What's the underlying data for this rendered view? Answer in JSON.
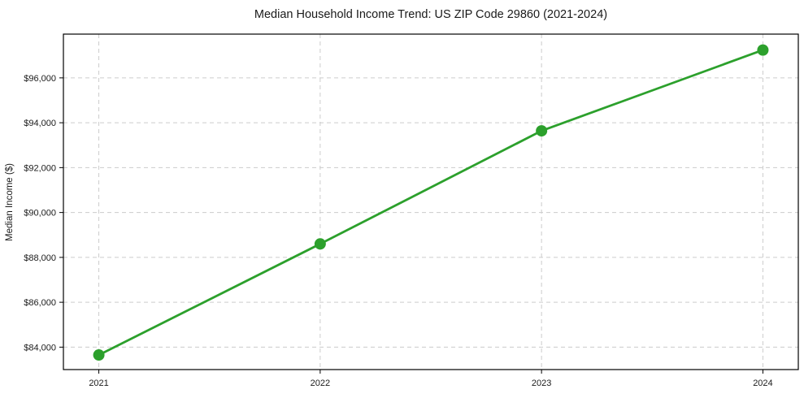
{
  "figure": {
    "background": "#ffffff",
    "text_color": "#1a1a1a",
    "grid_color": "#cccccc",
    "spine_color": "#000000"
  },
  "chart_data": {
    "type": "line",
    "title": "Median Household Income Trend: US ZIP Code 29860 (2021-2024)",
    "xlabel": "",
    "ylabel": "Median Income ($)",
    "x": [
      2021,
      2022,
      2023,
      2024
    ],
    "values": [
      83650,
      88600,
      93640,
      97240
    ],
    "series_name": "median-household-income",
    "xlim": [
      2020.84,
      2024.16
    ],
    "ylim": [
      83000,
      97950
    ],
    "xticks": [
      2021,
      2022,
      2023,
      2024
    ],
    "xtick_labels": [
      "2021",
      "2022",
      "2023",
      "2024"
    ],
    "yticks": [
      84000,
      86000,
      88000,
      90000,
      92000,
      94000,
      96000
    ],
    "ytick_labels": [
      "$84,000",
      "$86,000",
      "$88,000",
      "$90,000",
      "$92,000",
      "$94,000",
      "$96,000"
    ],
    "line_color": "#2ca02c",
    "marker": "circle",
    "marker_radius": 7,
    "line_width": 2.8,
    "grid": true,
    "grid_style": "dashed",
    "legend": false
  }
}
